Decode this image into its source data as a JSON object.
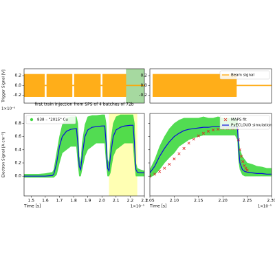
{
  "chart_data": [
    {
      "type": "line",
      "ylabel": "Trigger Signal [V]",
      "xlim": [
        1.45,
        2.3
      ],
      "ylim": [
        -0.36,
        0.34
      ],
      "yticks": [
        -0.2,
        {
          "value": 0,
          "label": "0.0"
        },
        0.2
      ],
      "x": [
        1.45,
        1.595,
        1.595,
        1.61,
        1.61,
        1.79,
        1.79,
        1.805,
        1.805,
        1.99,
        1.99,
        2.005,
        2.005,
        2.17,
        2.17,
        2.3
      ],
      "shade": [
        2.17,
        2.3
      ],
      "shade_color": "#a6d9a0",
      "series": [
        {
          "color": "#ffa500",
          "style": "band",
          "values": [
            0.23,
            0.23,
            0.01,
            0.01,
            0.23,
            0.23,
            0.01,
            0.01,
            0.23,
            0.23,
            0.01,
            0.01,
            0.23,
            0.23,
            0.01,
            0.01
          ],
          "lower": [
            -0.23,
            -0.23,
            -0.01,
            -0.01,
            -0.23,
            -0.23,
            -0.01,
            -0.01,
            -0.23,
            -0.23,
            -0.01,
            -0.01,
            -0.23,
            -0.23,
            -0.01,
            -0.01
          ]
        }
      ]
    },
    {
      "type": "line",
      "xlim": [
        2.05,
        2.3
      ],
      "ylim": [
        -0.36,
        0.34
      ],
      "yticks": [
        -0.2,
        {
          "value": 0,
          "label": "0.0"
        },
        0.2
      ],
      "x": [
        2.056,
        2.228,
        2.228,
        2.3
      ],
      "legend": "upper right",
      "series": [
        {
          "name": "Beam signal",
          "color": "#ffa500",
          "style": "band",
          "legend_marker": "line",
          "values": [
            0.23,
            0.23,
            0.01,
            0.01
          ],
          "lower": [
            -0.23,
            -0.23,
            -0.01,
            -0.01
          ]
        }
      ]
    },
    {
      "type": "line",
      "title": "first train injection from SPS of 4 batches of 72b",
      "ylabel": "Electron Signal [A cm⁻²]",
      "xlabel": "Time [s]",
      "y_offset_label": "1×10⁻⁵",
      "x_offset_label": "1×10⁻⁵",
      "xlim": [
        1.45,
        2.3
      ],
      "ylim": [
        -0.3,
        0.95
      ],
      "xticks": [
        1.5,
        1.6,
        1.7,
        1.8,
        1.9,
        {
          "value": 2,
          "label": "2.0"
        },
        2.1,
        2.2,
        2.3
      ],
      "yticks": [
        {
          "value": 0,
          "label": "0.0"
        },
        0.2,
        0.4,
        0.6,
        0.8
      ],
      "shade": [
        2.05,
        2.25
      ],
      "shade_color": "#ffffb3",
      "legend": "upper left",
      "x": [
        1.45,
        1.5,
        1.55,
        1.6,
        1.65,
        1.66,
        1.68,
        1.7,
        1.72,
        1.75,
        1.78,
        1.82,
        1.83,
        1.84,
        1.85,
        1.86,
        1.88,
        1.9,
        1.93,
        1.96,
        2.0,
        2.02,
        2.03,
        2.04,
        2.05,
        2.06,
        2.08,
        2.1,
        2.13,
        2.16,
        2.2,
        2.22,
        2.23,
        2.24,
        2.25,
        2.27,
        2.3
      ],
      "series": [
        {
          "name": "838 – \"2015\" Cu",
          "color": "#3fd83f",
          "style": "band",
          "legend_marker": "circle",
          "values": [
            0.03,
            0.03,
            0.03,
            0.04,
            0.06,
            0.1,
            0.35,
            0.6,
            0.78,
            0.88,
            0.9,
            0.9,
            0.8,
            0.3,
            0.2,
            0.5,
            0.78,
            0.9,
            0.92,
            0.92,
            0.93,
            0.93,
            0.8,
            0.25,
            0.2,
            0.5,
            0.8,
            0.9,
            0.93,
            0.93,
            0.93,
            0.93,
            0.8,
            0.2,
            0.12,
            0.1,
            0.08
          ],
          "lower": [
            -0.02,
            -0.02,
            -0.02,
            -0.02,
            -0.02,
            -0.02,
            0.02,
            0.2,
            0.35,
            0.4,
            0.45,
            0.45,
            0.2,
            0,
            0,
            0.1,
            0.3,
            0.4,
            0.45,
            0.5,
            0.5,
            0.5,
            0.2,
            0,
            0,
            0.05,
            0.3,
            0.4,
            0.45,
            0.5,
            0.5,
            0.5,
            0.2,
            0,
            0,
            0,
            0
          ]
        },
        {
          "color": "#0a0adc",
          "style": "line",
          "values": [
            0,
            0,
            0,
            0,
            0.01,
            0.03,
            0.2,
            0.45,
            0.6,
            0.68,
            0.71,
            0.72,
            0.5,
            0.15,
            0.1,
            0.3,
            0.6,
            0.7,
            0.74,
            0.75,
            0.76,
            0.76,
            0.5,
            0.12,
            0.08,
            0.3,
            0.6,
            0.7,
            0.74,
            0.76,
            0.77,
            0.77,
            0.5,
            0.1,
            0.06,
            0.05,
            0.05
          ]
        }
      ]
    },
    {
      "type": "line",
      "xlabel": "Time [s]",
      "x_offset_label": "1×10⁻⁵",
      "xlim": [
        2.05,
        2.3
      ],
      "ylim": [
        -0.3,
        0.95
      ],
      "xticks": [
        {
          "value": 2.05,
          "label": "2.05"
        },
        {
          "value": 2.1,
          "label": "2.10"
        },
        {
          "value": 2.15,
          "label": "2.15"
        },
        {
          "value": 2.2,
          "label": "2.20"
        },
        {
          "value": 2.25,
          "label": "2.25"
        },
        {
          "value": 2.3,
          "label": "2.30"
        }
      ],
      "yticks": [
        0,
        0.2,
        0.4,
        0.6,
        0.8
      ],
      "show_ytick_labels": false,
      "legend": "upper right",
      "x": [
        2.05,
        2.06,
        2.07,
        2.08,
        2.09,
        2.1,
        2.11,
        2.12,
        2.13,
        2.14,
        2.15,
        2.16,
        2.17,
        2.18,
        2.19,
        2.2,
        2.21,
        2.22,
        2.225,
        2.23,
        2.232,
        2.235,
        2.24,
        2.245,
        2.25,
        2.26,
        2.27,
        2.28,
        2.29,
        2.3
      ],
      "series": [
        {
          "color": "#3fd83f",
          "style": "band",
          "values": [
            0.1,
            0.25,
            0.45,
            0.6,
            0.72,
            0.8,
            0.85,
            0.88,
            0.88,
            0.88,
            0.88,
            0.9,
            0.88,
            0.88,
            0.9,
            0.88,
            0.88,
            0.88,
            0.88,
            0.85,
            0.6,
            0.4,
            0.3,
            0.25,
            0.2,
            0.18,
            0.15,
            0.14,
            0.12,
            0.12
          ],
          "lower": [
            -0.02,
            0.02,
            0.1,
            0.2,
            0.28,
            0.35,
            0.45,
            0.5,
            0.55,
            0.58,
            0.6,
            0.62,
            0.62,
            0.62,
            0.62,
            0.62,
            0.62,
            0.62,
            0.62,
            0.55,
            0.25,
            0.1,
            0.02,
            0,
            0,
            0,
            0,
            0,
            0,
            0
          ]
        },
        {
          "name": "MAPS fit",
          "color": "#dd2222",
          "style": "markers",
          "legend_marker": "x",
          "x": [
            2.05,
            2.06,
            2.07,
            2.08,
            2.09,
            2.1,
            2.11,
            2.12,
            2.13,
            2.14,
            2.15,
            2.16,
            2.17,
            2.18,
            2.19,
            2.2,
            2.21,
            2.22,
            2.23,
            2.232,
            2.235,
            2.238,
            2.241,
            2.244,
            2.247,
            2.25
          ],
          "values": [
            0,
            0.03,
            0.07,
            0.12,
            0.18,
            0.26,
            0.34,
            0.42,
            0.5,
            0.56,
            0.61,
            0.65,
            0.68,
            0.7,
            0.71,
            0.72,
            0.72,
            0.72,
            0.72,
            0.55,
            0.4,
            0.3,
            0.22,
            0.16,
            0.12,
            0.09
          ]
        },
        {
          "name": "PyECLOUD simulation",
          "color": "#0a0adc",
          "style": "line",
          "legend_marker": "line",
          "values": [
            0.05,
            0.15,
            0.3,
            0.42,
            0.52,
            0.6,
            0.65,
            0.69,
            0.71,
            0.72,
            0.73,
            0.74,
            0.74,
            0.75,
            0.75,
            0.75,
            0.75,
            0.75,
            0.75,
            0.74,
            0.45,
            0.2,
            0.1,
            0.07,
            0.06,
            0.05,
            0.04,
            0.04,
            0.03,
            0.03
          ]
        }
      ]
    }
  ]
}
